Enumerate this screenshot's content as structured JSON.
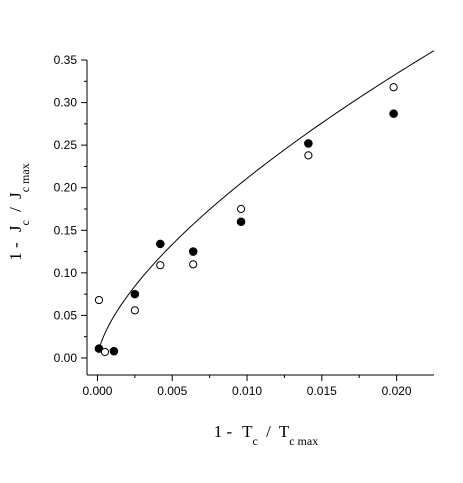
{
  "chart_data": {
    "type": "scatter",
    "title": "",
    "xlabel": {
      "prefix": "1 -",
      "num_main": "T",
      "num_sub": "c",
      "slash": "/",
      "den_main": "T",
      "den_sub": "c max"
    },
    "ylabel": {
      "prefix": "1 -",
      "num_main": "J",
      "num_sub": "c",
      "slash": "/",
      "den_main": "J",
      "den_sub": "c max"
    },
    "xlim": [
      -0.0007,
      0.0225
    ],
    "ylim": [
      -0.02,
      0.35
    ],
    "xticks": [
      0.0,
      0.005,
      0.01,
      0.015,
      0.02
    ],
    "xtick_labels": [
      "0.000",
      "0.005",
      "0.010",
      "0.015",
      "0.020"
    ],
    "yticks": [
      0.0,
      0.05,
      0.1,
      0.15,
      0.2,
      0.25,
      0.3,
      0.35
    ],
    "ytick_labels": [
      "0.00",
      "0.05",
      "0.10",
      "0.15",
      "0.20",
      "0.25",
      "0.30",
      "0.35"
    ],
    "grid": false,
    "legend": "none",
    "series": [
      {
        "marker": "filled-circle",
        "color": "#000000",
        "x": [
          0.0001,
          0.0011,
          0.0025,
          0.0042,
          0.0064,
          0.0096,
          0.0141,
          0.0198
        ],
        "y": [
          0.011,
          0.008,
          0.075,
          0.134,
          0.125,
          0.16,
          0.252,
          0.287
        ]
      },
      {
        "marker": "open-circle",
        "color": "#000000",
        "x": [
          0.0001,
          0.0005,
          0.0025,
          0.0042,
          0.0064,
          0.0096,
          0.0141,
          0.0198
        ],
        "y": [
          0.068,
          0.007,
          0.056,
          0.109,
          0.11,
          0.175,
          0.238,
          0.318
        ]
      },
      {
        "marker": "line",
        "color": "#000000",
        "fit": {
          "form": "a*x^b",
          "a": 4.45,
          "b": 0.662
        },
        "x_range": [
          0.0002,
          0.0225
        ]
      }
    ]
  }
}
